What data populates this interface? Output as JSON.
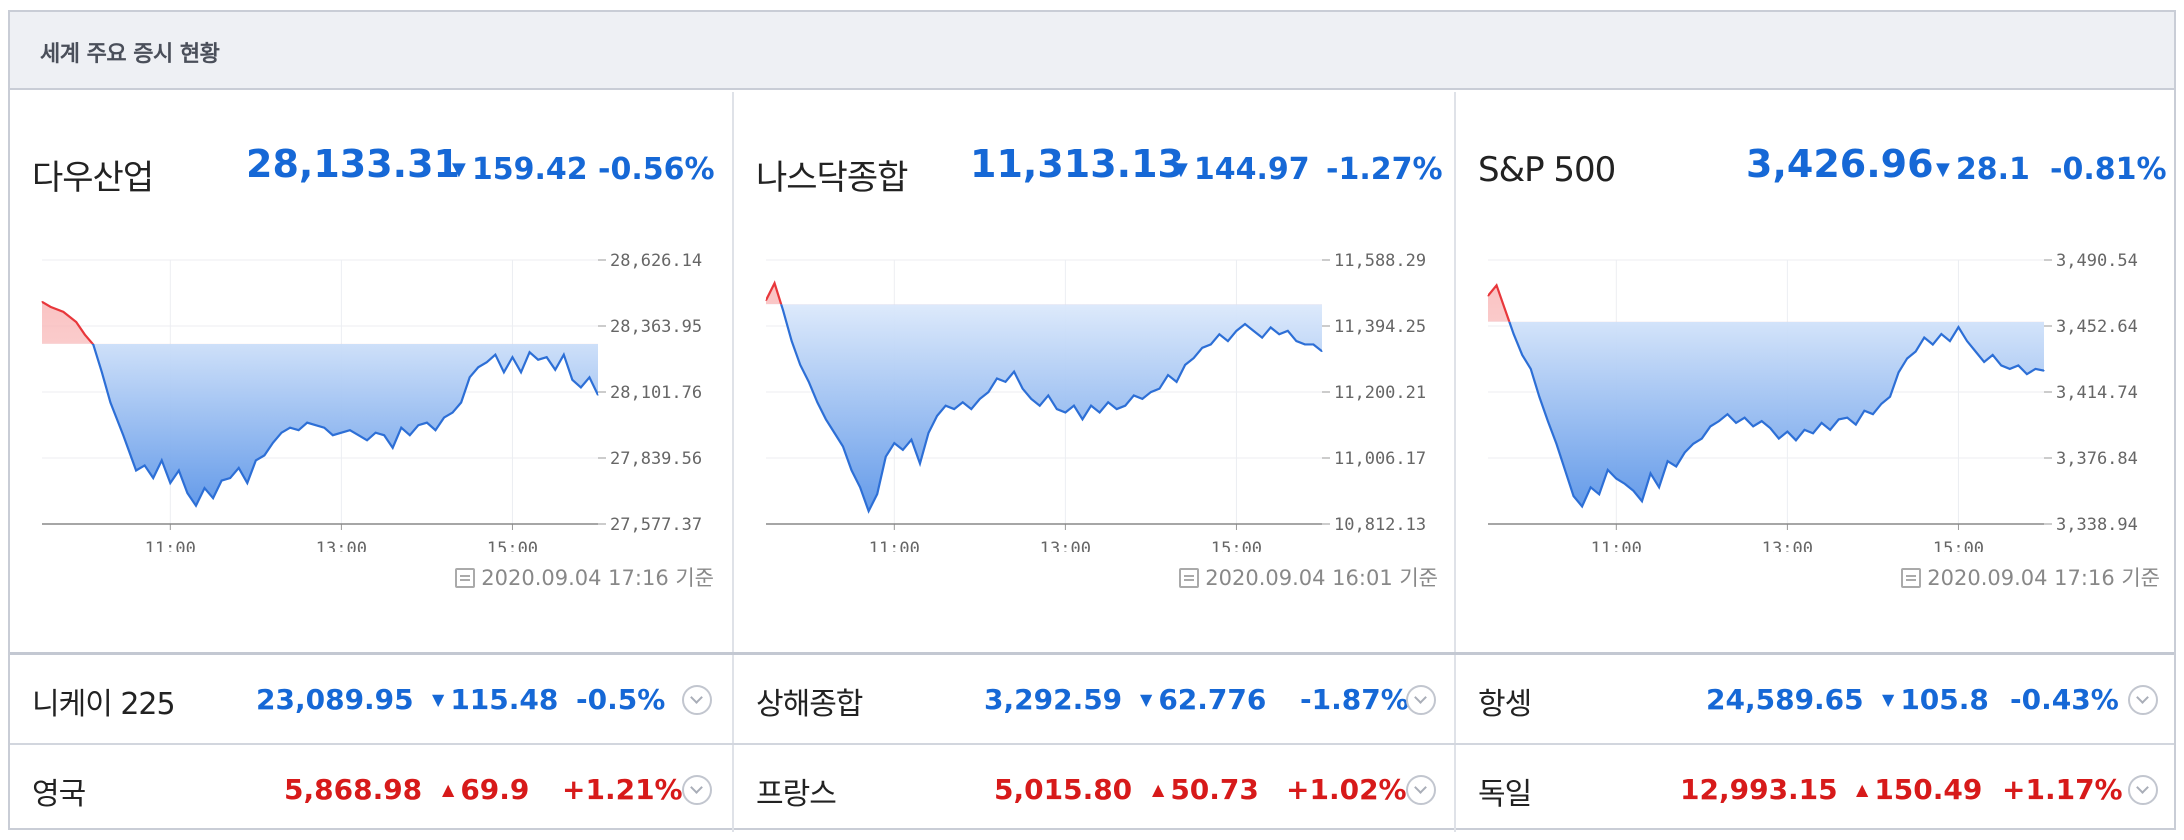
{
  "header": {
    "title": "세계 주요 증시 현황"
  },
  "panels": [
    {
      "name": "다우산업",
      "price": "28,133.31",
      "change": "159.42",
      "pct": "-0.56%",
      "direction": "down",
      "asof": "2020.09.04 17:16 기준",
      "chart_data": {
        "type": "area",
        "y_ticks": [
          "28,626.14",
          "28,363.95",
          "28,101.76",
          "27,839.56",
          "27,577.37"
        ],
        "x_ticks": [
          "11:00",
          "13:00",
          "15:00"
        ],
        "ylim": [
          27577.37,
          28626.14
        ],
        "baseline": 28292.73,
        "x": [
          9.5,
          9.6,
          9.75,
          9.9,
          10.0,
          10.1,
          10.2,
          10.3,
          10.45,
          10.6,
          10.7,
          10.8,
          10.9,
          11.0,
          11.1,
          11.2,
          11.3,
          11.4,
          11.5,
          11.6,
          11.7,
          11.8,
          11.9,
          12.0,
          12.1,
          12.2,
          12.3,
          12.4,
          12.5,
          12.6,
          12.7,
          12.8,
          12.9,
          13.0,
          13.1,
          13.2,
          13.3,
          13.4,
          13.5,
          13.6,
          13.7,
          13.8,
          13.9,
          14.0,
          14.1,
          14.2,
          14.3,
          14.4,
          14.5,
          14.6,
          14.7,
          14.8,
          14.9,
          15.0,
          15.1,
          15.2,
          15.3,
          15.4,
          15.5,
          15.6,
          15.7,
          15.8,
          15.9,
          16.0
        ],
        "values": [
          28460,
          28440,
          28420,
          28380,
          28330,
          28290,
          28180,
          28060,
          27930,
          27790,
          27810,
          27760,
          27830,
          27740,
          27790,
          27700,
          27650,
          27720,
          27680,
          27750,
          27760,
          27800,
          27740,
          27830,
          27850,
          27900,
          27940,
          27960,
          27950,
          27980,
          27970,
          27960,
          27930,
          27940,
          27950,
          27930,
          27910,
          27940,
          27930,
          27880,
          27960,
          27930,
          27970,
          27980,
          27950,
          28000,
          28020,
          28060,
          28160,
          28200,
          28220,
          28250,
          28180,
          28240,
          28180,
          28260,
          28230,
          28240,
          28190,
          28250,
          28150,
          28120,
          28160,
          28090
        ],
        "up_color": "#e8373b",
        "down_color": "#2d6fd6"
      }
    },
    {
      "name": "나스닥종합",
      "price": "11,313.13",
      "change": "144.97",
      "pct": "-1.27%",
      "direction": "down",
      "asof": "2020.09.04 16:01 기준",
      "chart_data": {
        "type": "area",
        "y_ticks": [
          "11,588.29",
          "11,394.25",
          "11,200.21",
          "11,006.17",
          "10,812.13"
        ],
        "x_ticks": [
          "11:00",
          "13:00",
          "15:00"
        ],
        "ylim": [
          10812.13,
          11588.29
        ],
        "baseline": 11458.1,
        "x": [
          9.5,
          9.6,
          9.7,
          9.8,
          9.9,
          10.0,
          10.1,
          10.2,
          10.3,
          10.4,
          10.5,
          10.6,
          10.7,
          10.8,
          10.9,
          11.0,
          11.1,
          11.2,
          11.3,
          11.4,
          11.5,
          11.6,
          11.7,
          11.8,
          11.9,
          12.0,
          12.1,
          12.2,
          12.3,
          12.4,
          12.5,
          12.6,
          12.7,
          12.8,
          12.9,
          13.0,
          13.1,
          13.2,
          13.3,
          13.4,
          13.5,
          13.6,
          13.7,
          13.8,
          13.9,
          14.0,
          14.1,
          14.2,
          14.3,
          14.4,
          14.5,
          14.6,
          14.7,
          14.8,
          14.9,
          15.0,
          15.1,
          15.2,
          15.3,
          15.4,
          15.5,
          15.6,
          15.7,
          15.8,
          15.9,
          16.0
        ],
        "values": [
          11470,
          11520,
          11440,
          11350,
          11280,
          11230,
          11170,
          11120,
          11080,
          11040,
          10970,
          10920,
          10850,
          10900,
          11010,
          11050,
          11030,
          11060,
          10990,
          11080,
          11130,
          11160,
          11150,
          11170,
          11150,
          11180,
          11200,
          11240,
          11230,
          11260,
          11210,
          11180,
          11160,
          11190,
          11150,
          11140,
          11160,
          11120,
          11160,
          11140,
          11170,
          11150,
          11160,
          11190,
          11180,
          11200,
          11210,
          11250,
          11230,
          11280,
          11300,
          11330,
          11340,
          11370,
          11350,
          11380,
          11400,
          11380,
          11360,
          11390,
          11370,
          11380,
          11350,
          11340,
          11340,
          11320
        ],
        "up_color": "#e8373b",
        "down_color": "#2d6fd6"
      }
    },
    {
      "name": "S&P 500",
      "price": "3,426.96",
      "change": "28.1",
      "pct": "-0.81%",
      "direction": "down",
      "asof": "2020.09.04 17:16 기준",
      "chart_data": {
        "type": "area",
        "y_ticks": [
          "3,490.54",
          "3,452.64",
          "3,414.74",
          "3,376.84",
          "3,338.94"
        ],
        "x_ticks": [
          "11:00",
          "13:00",
          "15:00"
        ],
        "ylim": [
          3338.94,
          3490.54
        ],
        "baseline": 3455.06,
        "x": [
          9.5,
          9.6,
          9.7,
          9.8,
          9.9,
          10.0,
          10.1,
          10.2,
          10.3,
          10.4,
          10.5,
          10.6,
          10.7,
          10.8,
          10.9,
          11.0,
          11.1,
          11.2,
          11.3,
          11.4,
          11.5,
          11.6,
          11.7,
          11.8,
          11.9,
          12.0,
          12.1,
          12.2,
          12.3,
          12.4,
          12.5,
          12.6,
          12.7,
          12.8,
          12.9,
          13.0,
          13.1,
          13.2,
          13.3,
          13.4,
          13.5,
          13.6,
          13.7,
          13.8,
          13.9,
          14.0,
          14.1,
          14.2,
          14.3,
          14.4,
          14.5,
          14.6,
          14.7,
          14.8,
          14.9,
          15.0,
          15.1,
          15.2,
          15.3,
          15.4,
          15.5,
          15.6,
          15.7,
          15.8,
          15.9,
          16.0
        ],
        "values": [
          3470,
          3476,
          3462,
          3448,
          3436,
          3428,
          3412,
          3398,
          3385,
          3370,
          3355,
          3349,
          3360,
          3356,
          3370,
          3365,
          3362,
          3358,
          3352,
          3368,
          3360,
          3375,
          3372,
          3380,
          3385,
          3388,
          3395,
          3398,
          3402,
          3397,
          3400,
          3395,
          3398,
          3394,
          3388,
          3392,
          3387,
          3393,
          3391,
          3397,
          3393,
          3399,
          3400,
          3396,
          3404,
          3402,
          3408,
          3412,
          3426,
          3434,
          3438,
          3446,
          3442,
          3448,
          3444,
          3452,
          3444,
          3438,
          3432,
          3436,
          3430,
          3428,
          3430,
          3425,
          3428,
          3427
        ],
        "up_color": "#e8373b",
        "down_color": "#2d6fd6"
      }
    }
  ],
  "rows": [
    [
      {
        "name": "니케이 225",
        "price": "23,089.95",
        "change": "115.48",
        "pct": "-0.5%",
        "direction": "down"
      },
      {
        "name": "상해종합",
        "price": "3,292.59",
        "change": "62.776",
        "pct": "-1.87%",
        "direction": "down"
      },
      {
        "name": "항셍",
        "price": "24,589.65",
        "change": "105.8",
        "pct": "-0.43%",
        "direction": "down"
      }
    ],
    [
      {
        "name": "영국",
        "price": "5,868.98",
        "change": "69.9",
        "pct": "+1.21%",
        "direction": "up"
      },
      {
        "name": "프랑스",
        "price": "5,015.80",
        "change": "50.73",
        "pct": "+1.02%",
        "direction": "up"
      },
      {
        "name": "독일",
        "price": "12,993.15",
        "change": "150.49",
        "pct": "+1.17%",
        "direction": "up"
      }
    ]
  ],
  "icons": {
    "down_arrow": "triangle-down",
    "up_arrow": "triangle-up",
    "expand": "chevron-down-circle",
    "asof": "calendar-icon"
  }
}
